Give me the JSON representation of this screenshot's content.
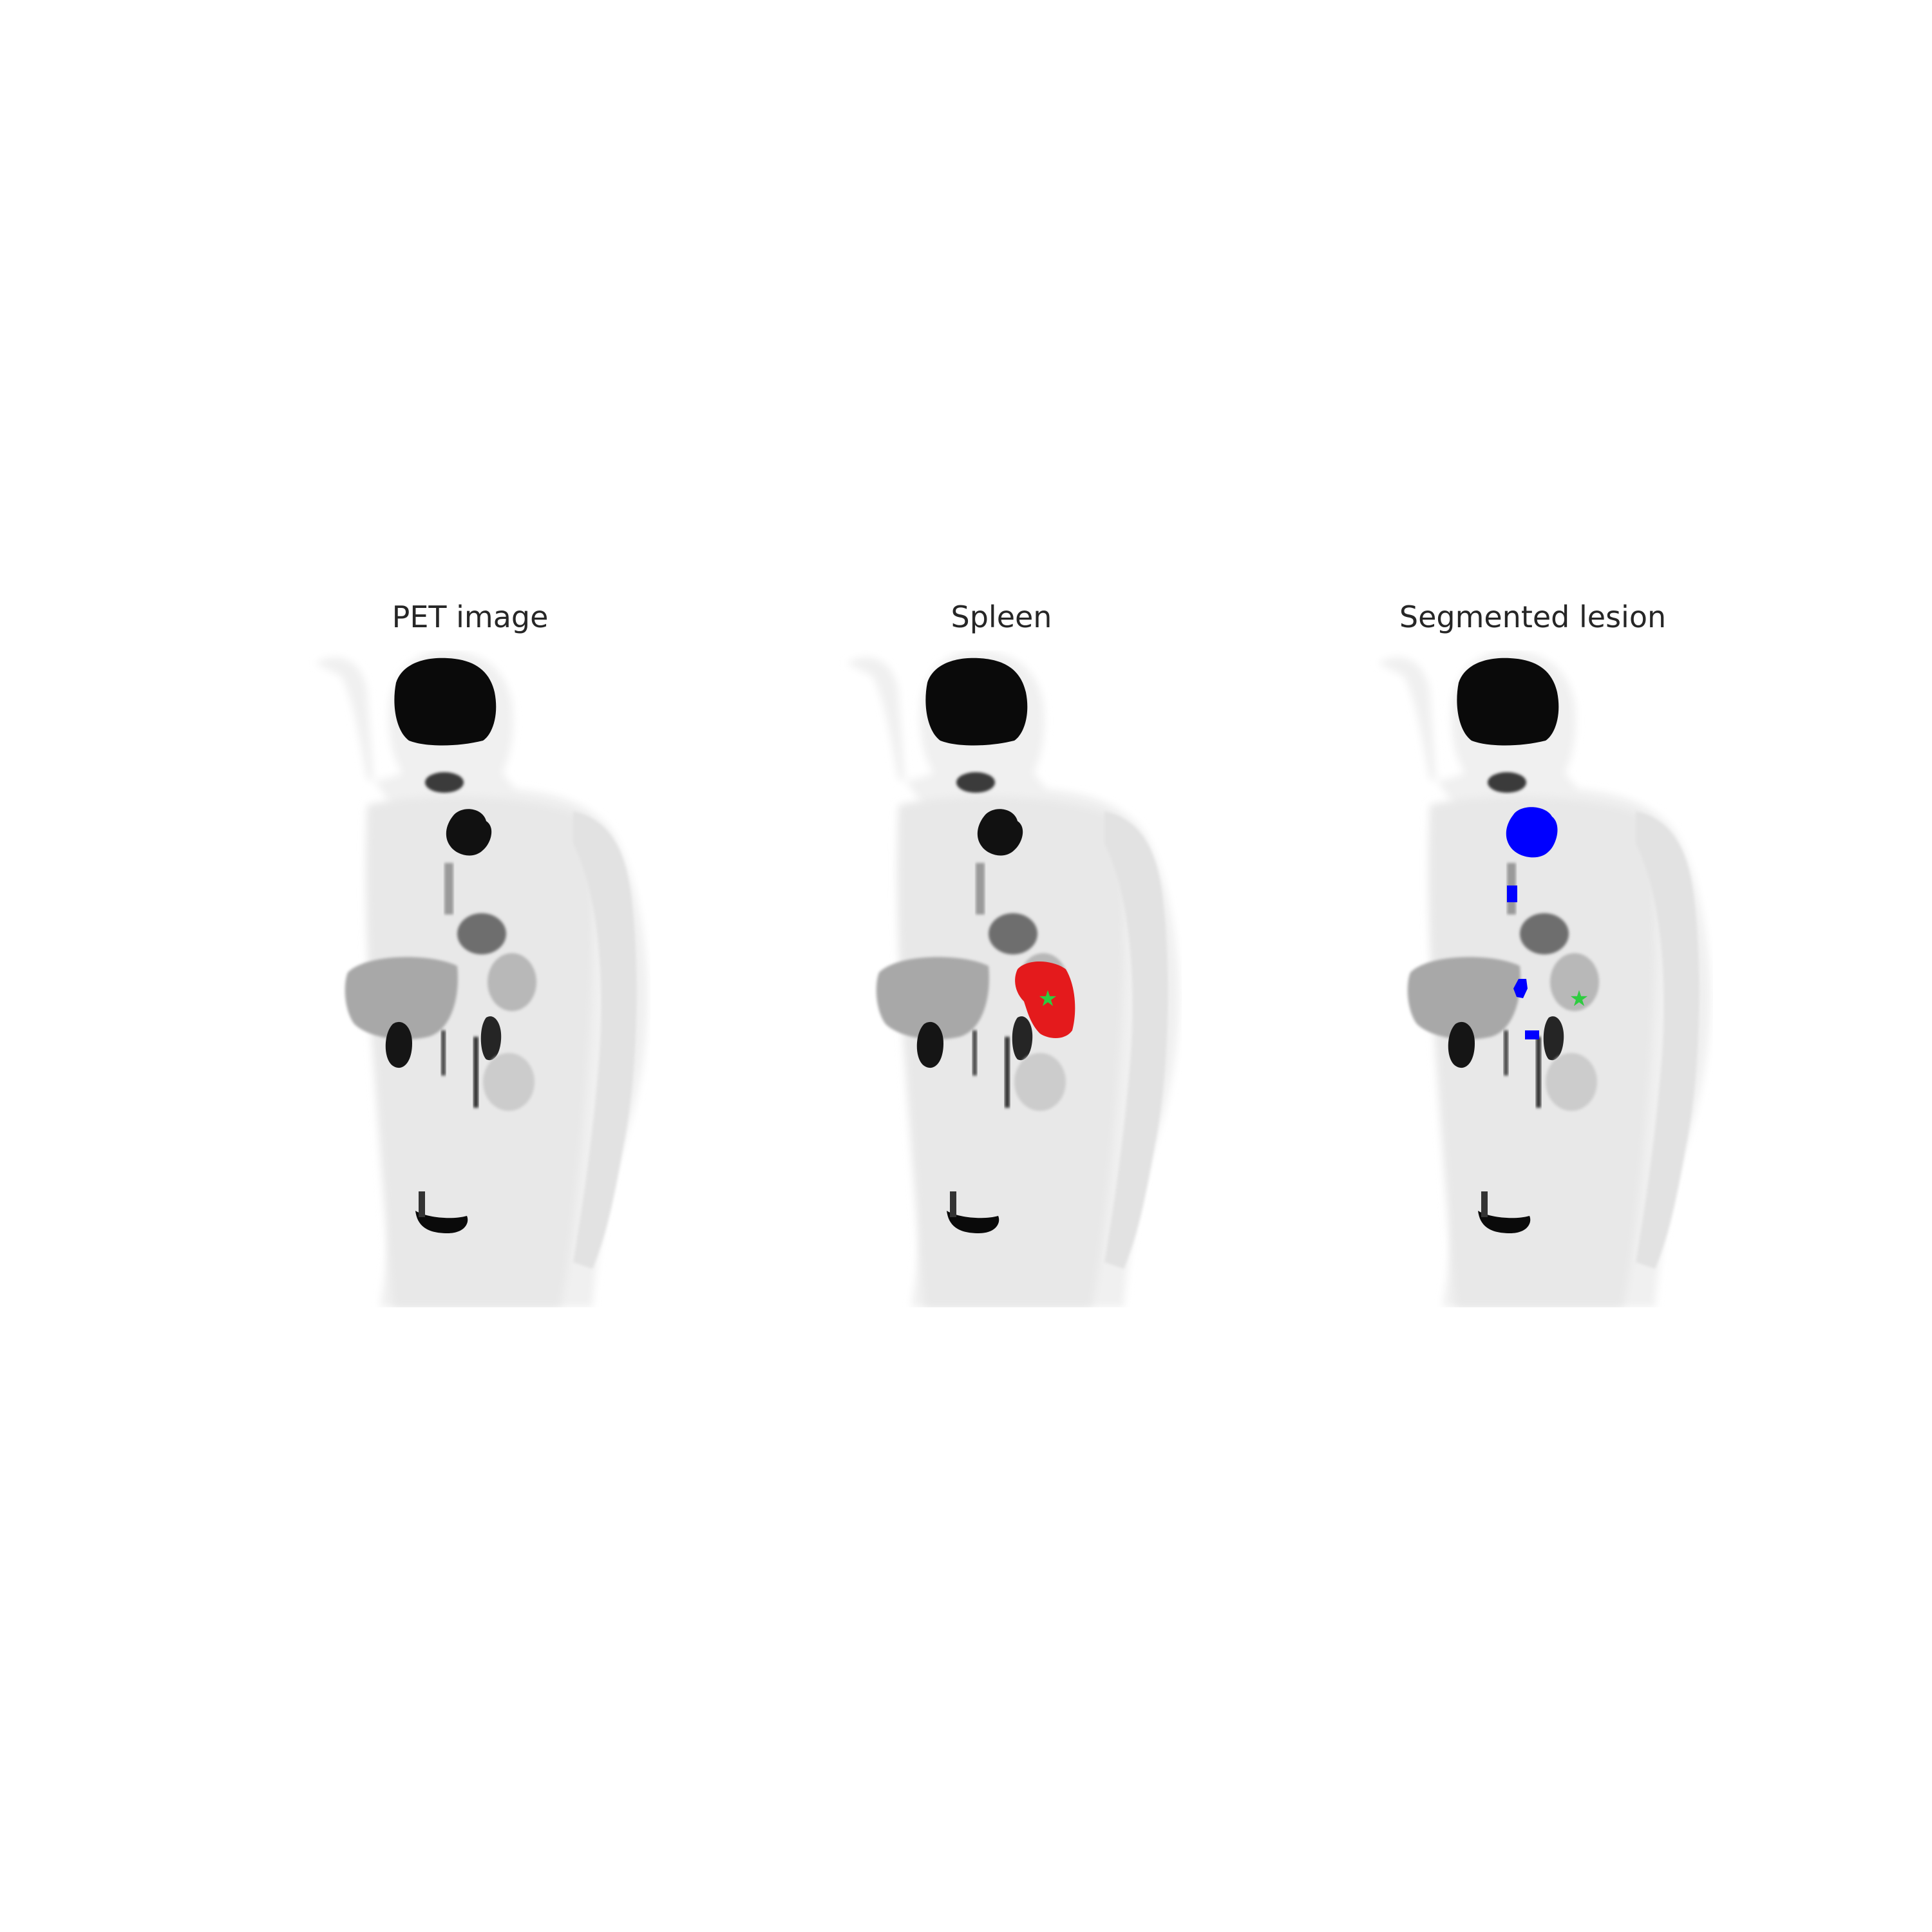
{
  "panels": [
    {
      "title": "PET image"
    },
    {
      "title": "Spleen",
      "overlay_color": "#e41a1c",
      "marker_color": "#2ecc40"
    },
    {
      "title": "Segmented lesion",
      "overlay_color": "#0000ff",
      "marker_color": "#2ecc40"
    }
  ],
  "colors": {
    "background": "#ffffff",
    "body": "#f2f2f2",
    "uptake": "#000000"
  }
}
